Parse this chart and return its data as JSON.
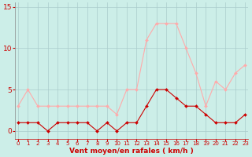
{
  "x": [
    0,
    1,
    2,
    3,
    4,
    5,
    6,
    7,
    8,
    9,
    10,
    11,
    12,
    13,
    14,
    15,
    16,
    17,
    18,
    19,
    20,
    21,
    22,
    23
  ],
  "vent_moyen": [
    1,
    1,
    1,
    0,
    1,
    1,
    1,
    1,
    0,
    1,
    0,
    1,
    1,
    3,
    5,
    5,
    4,
    3,
    3,
    2,
    1,
    1,
    1,
    2
  ],
  "vent_rafales": [
    3,
    5,
    3,
    3,
    3,
    3,
    3,
    3,
    3,
    3,
    2,
    5,
    5,
    11,
    13,
    13,
    13,
    10,
    7,
    3,
    6,
    5,
    7,
    8
  ],
  "color_moyen": "#cc0000",
  "color_rafales": "#ffaaaa",
  "bg_color": "#cceee8",
  "grid_color": "#aacccc",
  "xlabel": "Vent moyen/en rafales ( km/h )",
  "yticks": [
    0,
    5,
    10,
    15
  ],
  "xlim": [
    -0.3,
    23.3
  ],
  "ylim": [
    -1,
    15.5
  ]
}
